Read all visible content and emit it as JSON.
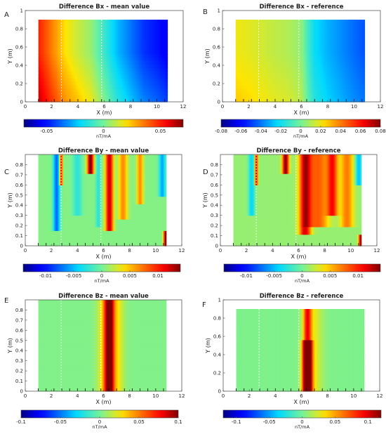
{
  "chart_data": [
    {
      "panel": "A",
      "type": "heatmap",
      "title": "Difference Bx - mean value",
      "xlabel": "X (m)",
      "ylabel": "Y (m)",
      "xlim": [
        0,
        12
      ],
      "ylim": [
        0,
        1
      ],
      "xticks": [
        "0",
        "2",
        "4",
        "6",
        "8",
        "10",
        "12"
      ],
      "yticks": [
        "0",
        "0.2",
        "0.4",
        "0.6",
        "0.8",
        "1"
      ],
      "data_extent": {
        "x": [
          1,
          10.8
        ],
        "y": [
          0,
          0.9
        ]
      },
      "colorbar": {
        "range": [
          -0.07,
          0.07
        ],
        "ticks": [
          -0.05,
          0,
          0.05
        ],
        "tick_labels": [
          "-0.05",
          "0",
          "0.05"
        ],
        "unit": "nT/mA"
      },
      "dashed_lines_x": [
        2.75,
        5.8
      ],
      "field": {
        "kind": "gradient",
        "x": [
          1,
          2,
          3,
          4,
          5,
          6,
          7,
          8,
          9,
          10,
          10.8
        ],
        "values": [
          0.05,
          0.035,
          0.02,
          0.012,
          0.005,
          -0.01,
          -0.025,
          -0.035,
          -0.045,
          -0.05,
          -0.055
        ],
        "y_bottom_boost": 0.012
      }
    },
    {
      "panel": "B",
      "type": "heatmap",
      "title": "Difference Bx - reference",
      "xlabel": "X (m)",
      "ylabel": "Y (m)",
      "xlim": [
        0,
        12
      ],
      "ylim": [
        0,
        1
      ],
      "xticks": [
        "0",
        "2",
        "4",
        "6",
        "8",
        "10",
        "12"
      ],
      "yticks": [
        "0",
        "0.2",
        "0.4",
        "0.6",
        "0.8",
        "1"
      ],
      "data_extent": {
        "x": [
          1,
          10.8
        ],
        "y": [
          0,
          0.9
        ]
      },
      "colorbar": {
        "range": [
          -0.08,
          0.08
        ],
        "ticks": [
          -0.08,
          -0.06,
          -0.04,
          -0.02,
          0,
          0.02,
          0.04,
          0.06,
          0.08
        ],
        "tick_labels": [
          "-0.08",
          "-0.06",
          "-0.04",
          "-0.02",
          "0",
          "0.02",
          "0.04",
          "0.06",
          "0.08"
        ],
        "unit": "nT/mA"
      },
      "dashed_lines_x": [
        2.75,
        5.8
      ],
      "field": {
        "kind": "gradient",
        "x": [
          1,
          2,
          3,
          4,
          5,
          6,
          6.5,
          7,
          8,
          9,
          10,
          10.8
        ],
        "values": [
          0.02,
          0.018,
          0.015,
          0.012,
          0.01,
          0.005,
          -0.01,
          -0.022,
          -0.03,
          -0.036,
          -0.042,
          -0.046
        ],
        "y_bottom_boost": 0.006
      }
    },
    {
      "panel": "C",
      "type": "heatmap",
      "title": "Difference By - mean value",
      "xlabel": "X (m)",
      "ylabel": "Y (m)",
      "xlim": [
        0,
        12
      ],
      "ylim": [
        0,
        0.9
      ],
      "xticks": [
        "0",
        "2",
        "4",
        "6",
        "8",
        "10",
        "12"
      ],
      "yticks": [
        "0",
        "0.1",
        "0.2",
        "0.3",
        "0.4",
        "0.5",
        "0.6",
        "0.7",
        "0.8"
      ],
      "data_extent": {
        "x": [
          1,
          10.8
        ],
        "y": [
          0,
          0.9
        ]
      },
      "colorbar": {
        "range": [
          -0.014,
          0.014
        ],
        "ticks": [
          -0.01,
          -0.005,
          0,
          0.005,
          0.01
        ],
        "tick_labels": [
          "-0.01",
          "-0.005",
          "0",
          "0.005",
          "0.01"
        ],
        "unit": "nT/mA"
      },
      "dashed_lines_x": [
        2.75,
        5.8
      ],
      "field": {
        "kind": "stripes",
        "base": 0.0005,
        "stripes": [
          {
            "x": 2.4,
            "w": 0.25,
            "v": -0.008,
            "ymin": 0.15
          },
          {
            "x": 2.75,
            "w": 0.12,
            "v": 0.012,
            "ymin": 0.6
          },
          {
            "x": 4.0,
            "w": 0.35,
            "v": -0.003,
            "ymin": 0.3
          },
          {
            "x": 5.0,
            "w": 0.25,
            "v": 0.014,
            "ymin": 0.7
          },
          {
            "x": 5.6,
            "w": 0.2,
            "v": -0.003,
            "ymin": 0.2
          },
          {
            "x": 6.45,
            "w": 0.3,
            "v": 0.012,
            "ymin": 0.15
          },
          {
            "x": 7.5,
            "w": 0.35,
            "v": 0.006,
            "ymin": 0.25
          },
          {
            "x": 8.8,
            "w": 0.25,
            "v": 0.006,
            "ymin": 0.4
          },
          {
            "x": 10.5,
            "w": 0.25,
            "v": -0.006,
            "ymin": 0.5
          },
          {
            "x": 10.75,
            "w": 0.15,
            "v": 0.013,
            "ymax": 0.15
          }
        ]
      }
    },
    {
      "panel": "D",
      "type": "heatmap",
      "title": "Difference By - reference",
      "xlabel": "X (m)",
      "ylabel": "Y (m)",
      "xlim": [
        0,
        12
      ],
      "ylim": [
        0,
        0.9
      ],
      "xticks": [
        "0",
        "2",
        "4",
        "6",
        "8",
        "10",
        "12"
      ],
      "yticks": [
        "0",
        "0.1",
        "0.2",
        "0.3",
        "0.4",
        "0.5",
        "0.6",
        "0.7",
        "0.8"
      ],
      "data_extent": {
        "x": [
          1,
          10.8
        ],
        "y": [
          0,
          0.9
        ]
      },
      "colorbar": {
        "range": [
          -0.014,
          0.014
        ],
        "ticks": [
          -0.01,
          -0.005,
          0,
          0.005,
          0.01
        ],
        "tick_labels": [
          "-0.01",
          "-0.005",
          "0",
          "0.005",
          "0.01"
        ],
        "unit": "nT/mA"
      },
      "dashed_lines_x": [
        2.75,
        5.8
      ],
      "field": {
        "kind": "stripes",
        "base": 0.001,
        "stripes": [
          {
            "x": 2.4,
            "w": 0.25,
            "v": -0.005,
            "ymin": 0.3
          },
          {
            "x": 2.75,
            "w": 0.12,
            "v": 0.012,
            "ymin": 0.6
          },
          {
            "x": 5.0,
            "w": 0.25,
            "v": 0.013,
            "ymin": 0.7
          },
          {
            "x": 6.5,
            "w": 0.45,
            "v": 0.011,
            "ymin": 0.1
          },
          {
            "x": 7.5,
            "w": 0.8,
            "v": 0.007,
            "ymin": 0.2
          },
          {
            "x": 8.6,
            "w": 0.4,
            "v": 0.009,
            "ymin": 0.3
          },
          {
            "x": 9.7,
            "w": 0.5,
            "v": 0.006,
            "ymin": 0.2
          },
          {
            "x": 10.6,
            "w": 0.25,
            "v": -0.006,
            "ymin": 0.6
          },
          {
            "x": 10.75,
            "w": 0.15,
            "v": 0.012,
            "ymax": 0.12
          }
        ]
      }
    },
    {
      "panel": "E",
      "type": "heatmap",
      "title": "Difference Bz - mean value",
      "xlabel": "X (m)",
      "ylabel": "Y (m)",
      "xlim": [
        0,
        12
      ],
      "ylim": [
        0,
        0.9
      ],
      "xticks": [
        "0",
        "2",
        "4",
        "6",
        "8",
        "10",
        "12"
      ],
      "yticks": [
        "0",
        "0.1",
        "0.2",
        "0.3",
        "0.4",
        "0.5",
        "0.6",
        "0.7",
        "0.8"
      ],
      "data_extent": {
        "x": [
          1,
          10.8
        ],
        "y": [
          0,
          0.9
        ]
      },
      "colorbar": {
        "range": [
          -0.1,
          0.1
        ],
        "ticks": [
          -0.1,
          -0.05,
          0,
          0.05,
          0.1
        ],
        "tick_labels": [
          "-0.1",
          "-0.05",
          "0",
          "0.05",
          "0.1"
        ],
        "unit": "nT/mA"
      },
      "dashed_lines_x": [
        2.75,
        5.8
      ],
      "field": {
        "kind": "stripes",
        "base": 0.003,
        "stripes": [
          {
            "x": 6.45,
            "w": 0.35,
            "v": 0.095
          },
          {
            "x": 6.2,
            "w": 0.6,
            "v": 0.03
          },
          {
            "x": 7.1,
            "w": 0.5,
            "v": 0.02
          }
        ]
      }
    },
    {
      "panel": "F",
      "type": "heatmap",
      "title": "Difference Bz - reference",
      "xlabel": "X (m)",
      "ylabel": "Y (m)",
      "xlim": [
        0,
        12
      ],
      "ylim": [
        0,
        1
      ],
      "xticks": [
        "0",
        "2",
        "4",
        "6",
        "8",
        "10",
        "12"
      ],
      "yticks": [
        "0",
        "0.2",
        "0.4",
        "0.6",
        "0.8",
        "1"
      ],
      "data_extent": {
        "x": [
          1,
          10.8
        ],
        "y": [
          0,
          0.9
        ]
      },
      "colorbar": {
        "range": [
          -0.12,
          0.12
        ],
        "ticks": [
          -0.1,
          -0.05,
          0,
          0.05,
          0.1
        ],
        "tick_labels": [
          "-0.1",
          "-0.05",
          "0",
          "0.05",
          "0.1"
        ],
        "unit": "nT/mA"
      },
      "dashed_lines_x": [
        2.75,
        5.8
      ],
      "field": {
        "kind": "stripes",
        "base": 0.003,
        "stripes": [
          {
            "x": 6.45,
            "w": 0.35,
            "v": 0.115,
            "ymax": 0.55
          },
          {
            "x": 6.45,
            "w": 0.3,
            "v": 0.08
          },
          {
            "x": 6.9,
            "w": 0.7,
            "v": 0.025
          }
        ]
      }
    }
  ]
}
